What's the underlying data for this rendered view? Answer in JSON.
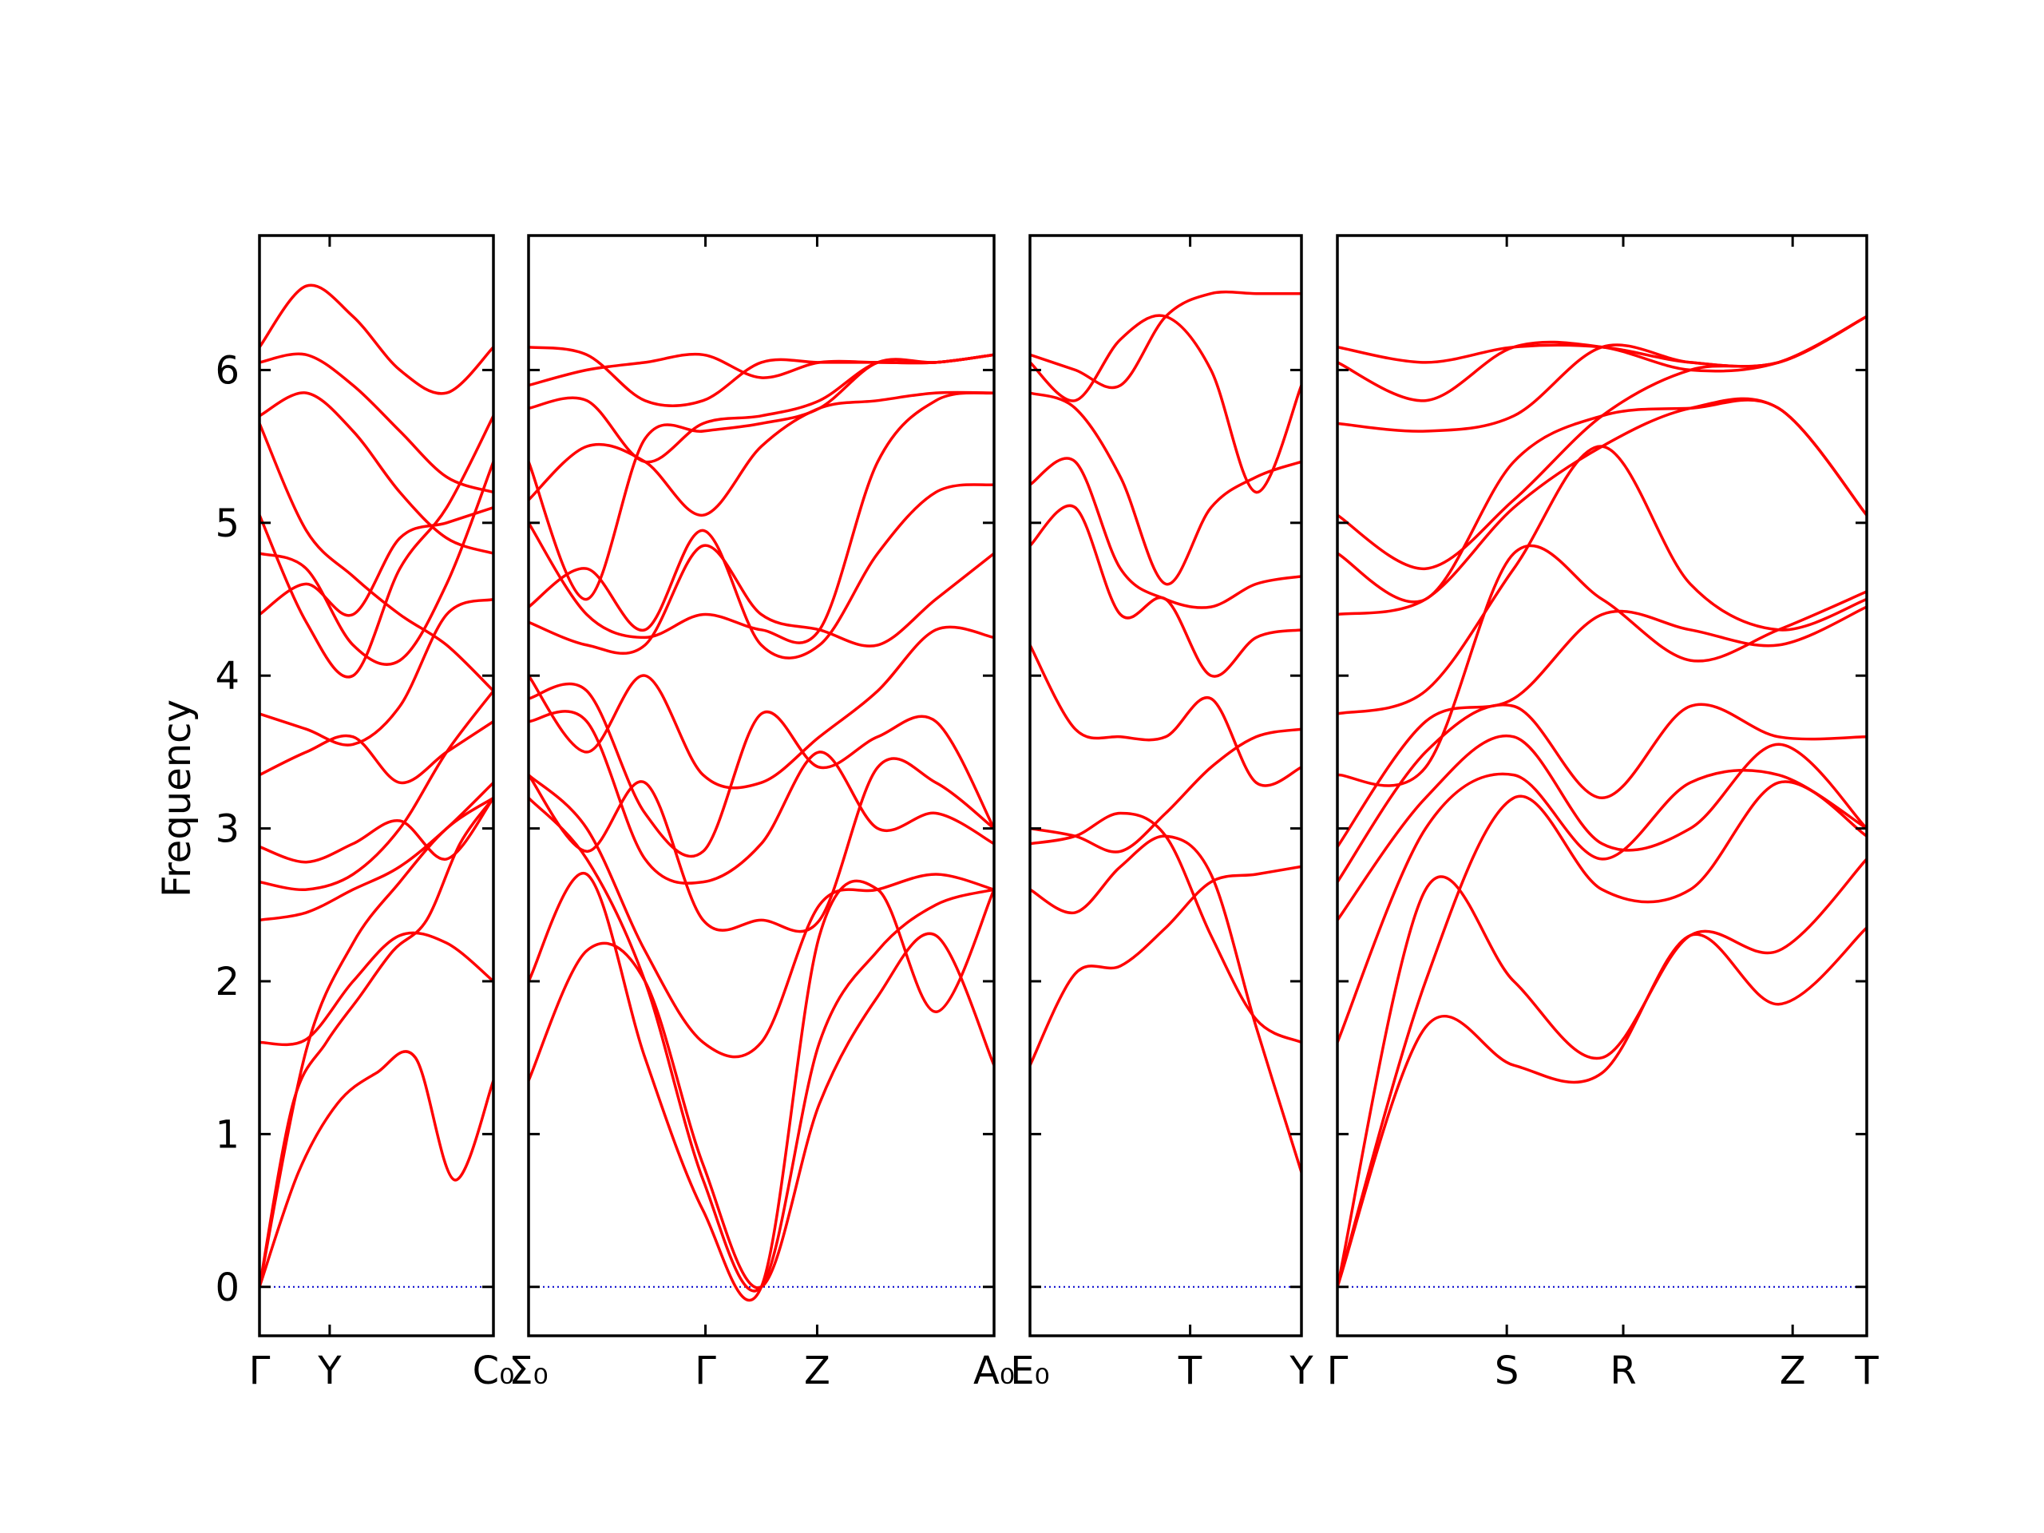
{
  "chart_data": {
    "type": "line",
    "ylabel": "Frequency",
    "ylim": [
      -0.32,
      6.88
    ],
    "yticks": [
      "0",
      "1",
      "2",
      "3",
      "4",
      "5",
      "6"
    ],
    "colors": {
      "bands": "#ff0000",
      "zero_line": "#0000cc",
      "frame": "#000000"
    },
    "panels": [
      {
        "xticks": [
          "Γ",
          "Y",
          "C₀"
        ],
        "segments": [
          "Γ-Y",
          "Y-C₀"
        ],
        "x": [
          0,
          0.3,
          1
        ],
        "bands": [
          [
            0,
            0.75,
            1.2,
            1.4,
            1.5,
            0.7,
            1.35
          ],
          [
            0,
            1.2,
            1.6,
            1.9,
            2.2,
            2.4,
            2.9,
            3.2
          ],
          [
            0,
            1.55,
            2.25,
            2.65,
            3.0,
            3.2
          ],
          [
            1.6,
            1.62,
            2.0,
            2.3,
            2.25,
            2.0
          ],
          [
            2.4,
            2.45,
            2.6,
            2.75,
            3.0,
            3.3
          ],
          [
            2.65,
            2.6,
            2.7,
            3.0,
            3.5,
            3.9
          ],
          [
            2.88,
            2.78,
            2.9,
            3.05,
            2.8,
            3.2
          ],
          [
            3.35,
            3.5,
            3.6,
            3.3,
            3.5,
            3.7
          ],
          [
            3.75,
            3.65,
            3.55,
            3.8,
            4.4,
            4.5
          ],
          [
            4.4,
            4.6,
            4.4,
            4.9,
            5.0,
            5.1
          ],
          [
            4.8,
            4.7,
            4.2,
            4.1,
            4.6,
            5.4
          ],
          [
            5.05,
            4.35,
            4.0,
            4.7,
            5.1,
            5.7
          ],
          [
            5.65,
            4.95,
            4.65,
            4.4,
            4.2,
            3.9
          ],
          [
            5.7,
            5.85,
            5.6,
            5.2,
            4.9,
            4.8
          ],
          [
            6.05,
            6.1,
            5.9,
            5.6,
            5.3,
            5.2
          ],
          [
            6.15,
            6.55,
            6.35,
            6.0,
            5.85,
            6.15
          ]
        ]
      },
      {
        "xticks": [
          "Σ₀",
          "Γ",
          "Z",
          "A₀"
        ],
        "segments": [
          "Σ₀-Γ",
          "Γ-Z",
          "Z-A₀"
        ],
        "x": [
          0,
          0.38,
          0.62,
          1
        ],
        "bands": [
          [
            1.35,
            2.2,
            2.0,
            0.8,
            0,
            1.2,
            1.9,
            2.3,
            1.45
          ],
          [
            2.0,
            2.7,
            1.5,
            0.5,
            0,
            2.3,
            2.6,
            1.8,
            2.6
          ],
          [
            3.2,
            2.8,
            2.0,
            0.7,
            0,
            1.6,
            2.2,
            2.5,
            2.6
          ],
          [
            3.35,
            3.0,
            2.2,
            1.6,
            1.6,
            2.5,
            2.6,
            2.7,
            2.6
          ],
          [
            3.35,
            2.85,
            3.3,
            2.4,
            2.4,
            2.4,
            3.4,
            3.3,
            3.0
          ],
          [
            3.7,
            3.7,
            2.8,
            2.65,
            2.9,
            3.5,
            3.0,
            3.1,
            2.9
          ],
          [
            3.85,
            3.9,
            3.1,
            2.85,
            3.75,
            3.4,
            3.6,
            3.7,
            3.0
          ],
          [
            4.0,
            3.5,
            4.0,
            3.35,
            3.3,
            3.6,
            3.9,
            4.3,
            4.25
          ],
          [
            4.35,
            4.2,
            4.2,
            4.85,
            4.4,
            4.3,
            4.2,
            4.5,
            4.8
          ],
          [
            4.45,
            4.7,
            4.3,
            4.95,
            4.2,
            4.2,
            4.8,
            5.2,
            5.25
          ],
          [
            5.0,
            4.4,
            4.25,
            4.4,
            4.3,
            4.3,
            5.4,
            5.8,
            5.85
          ],
          [
            5.15,
            5.5,
            5.4,
            5.05,
            5.5,
            5.75,
            5.8,
            5.85,
            5.85
          ],
          [
            5.4,
            4.5,
            5.55,
            5.6,
            5.65,
            5.75,
            6.05,
            6.05,
            6.1
          ],
          [
            5.75,
            5.8,
            5.4,
            5.65,
            5.7,
            5.8,
            6.05,
            6.05,
            6.1
          ],
          [
            5.9,
            6.0,
            6.05,
            6.1,
            5.95,
            6.05,
            6.05,
            6.05,
            6.1
          ],
          [
            6.15,
            6.1,
            5.8,
            5.8,
            6.05,
            6.05,
            6.05,
            6.05,
            6.1
          ]
        ]
      },
      {
        "xticks": [
          "E₀",
          "T",
          "Y"
        ],
        "segments": [
          "E₀-T",
          "T-Y"
        ],
        "x": [
          0,
          0.59,
          1
        ],
        "bands": [
          [
            1.45,
            2.05,
            2.1,
            2.35,
            2.65,
            2.7,
            2.75
          ],
          [
            2.6,
            2.45,
            2.75,
            2.95,
            2.7,
            1.7,
            0.75
          ],
          [
            2.9,
            2.95,
            3.1,
            2.95,
            2.3,
            1.75,
            1.6
          ],
          [
            3.0,
            2.95,
            2.85,
            3.1,
            3.4,
            3.6,
            3.65
          ],
          [
            4.2,
            3.65,
            3.6,
            3.6,
            3.85,
            3.3,
            3.4
          ],
          [
            4.85,
            5.1,
            4.4,
            4.5,
            4.0,
            4.25,
            4.3
          ],
          [
            5.25,
            5.4,
            4.7,
            4.5,
            4.45,
            4.6,
            4.65
          ],
          [
            5.85,
            5.75,
            5.3,
            4.6,
            5.1,
            5.3,
            5.4
          ],
          [
            6.05,
            5.8,
            6.2,
            6.35,
            6.0,
            5.2,
            5.9
          ],
          [
            6.1,
            6.0,
            5.9,
            6.35,
            6.5,
            6.5,
            6.5
          ]
        ]
      },
      {
        "xticks": [
          "Γ",
          "S",
          "R",
          "Z",
          "T"
        ],
        "segments": [
          "Γ-S",
          "S-R",
          "R-Z",
          "Z-T"
        ],
        "x": [
          0,
          0.32,
          0.54,
          0.86,
          1
        ],
        "bands": [
          [
            0,
            1.7,
            1.45,
            1.4,
            2.3,
            1.85,
            2.35
          ],
          [
            0,
            2.6,
            2.0,
            1.5,
            2.3,
            2.2,
            2.8
          ],
          [
            0,
            2.0,
            3.2,
            2.6,
            2.6,
            3.3,
            2.95
          ],
          [
            1.6,
            3.0,
            3.35,
            2.8,
            3.3,
            3.35,
            3.0
          ],
          [
            2.4,
            3.2,
            3.6,
            2.9,
            3.0,
            3.55,
            3.0
          ],
          [
            2.65,
            3.5,
            3.8,
            3.2,
            3.8,
            3.6,
            3.6
          ],
          [
            2.88,
            3.7,
            3.85,
            4.4,
            4.3,
            4.2,
            4.45
          ],
          [
            3.35,
            3.4,
            4.8,
            4.5,
            4.1,
            4.3,
            4.55
          ],
          [
            3.75,
            3.9,
            4.7,
            5.5,
            4.6,
            4.3,
            4.5
          ],
          [
            4.4,
            4.5,
            5.1,
            5.5,
            5.75,
            5.75,
            5.05
          ],
          [
            4.8,
            4.5,
            5.4,
            5.7,
            5.75,
            5.75,
            5.05
          ],
          [
            5.05,
            4.7,
            5.15,
            5.7,
            6.0,
            6.05,
            6.35
          ],
          [
            5.65,
            5.6,
            5.7,
            6.15,
            6.05,
            6.05,
            6.35
          ],
          [
            6.05,
            5.8,
            6.15,
            6.15,
            6.0,
            6.05,
            6.35
          ],
          [
            6.15,
            6.05,
            6.15,
            6.15,
            6.05,
            6.05,
            6.35
          ]
        ]
      }
    ]
  }
}
